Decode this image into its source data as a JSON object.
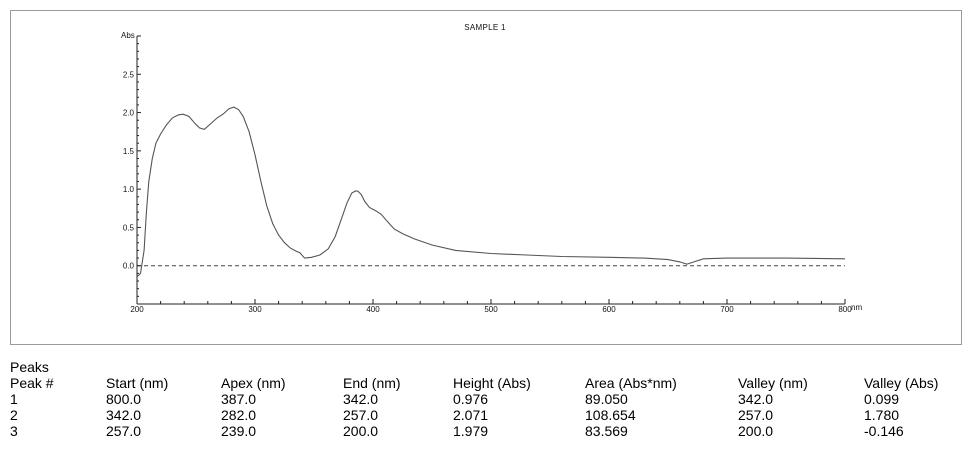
{
  "chart_data": {
    "type": "line",
    "title": "SAMPLE 1",
    "ylabel": "Abs",
    "xlabel": "nm",
    "xlim": [
      200,
      800
    ],
    "ylim": [
      -0.5,
      3.0
    ],
    "x_ticks": [
      200,
      300,
      400,
      500,
      600,
      700,
      800
    ],
    "x_tick_labels": [
      "200",
      "300",
      "400",
      "500",
      "600",
      "700",
      "800"
    ],
    "y_ticks": [
      0.0,
      0.5,
      1.0,
      1.5,
      2.0,
      2.5
    ],
    "y_tick_labels": [
      "0.0",
      "0.5",
      "1.0",
      "1.5",
      "2.0",
      "2.5"
    ],
    "baseline": 0.0,
    "series": [
      {
        "color": "#555555",
        "x": [
          200,
          203,
          206,
          208,
          210,
          213,
          216,
          220,
          225,
          230,
          235,
          239,
          244,
          249,
          253,
          257,
          262,
          268,
          273,
          278,
          282,
          286,
          290,
          295,
          300,
          305,
          310,
          315,
          320,
          325,
          330,
          335,
          338,
          342,
          348,
          355,
          362,
          368,
          373,
          378,
          382,
          385,
          387,
          390,
          393,
          397,
          402,
          407,
          412,
          418,
          425,
          435,
          450,
          470,
          500,
          530,
          560,
          600,
          630,
          650,
          660,
          666,
          672,
          680,
          700,
          750,
          800
        ],
        "y": [
          -0.146,
          -0.1,
          0.2,
          0.7,
          1.1,
          1.4,
          1.6,
          1.72,
          1.84,
          1.93,
          1.97,
          1.979,
          1.95,
          1.86,
          1.8,
          1.78,
          1.85,
          1.93,
          1.98,
          2.05,
          2.071,
          2.04,
          1.95,
          1.75,
          1.45,
          1.1,
          0.78,
          0.55,
          0.4,
          0.3,
          0.23,
          0.19,
          0.17,
          0.099,
          0.11,
          0.14,
          0.22,
          0.38,
          0.6,
          0.82,
          0.95,
          0.975,
          0.976,
          0.93,
          0.84,
          0.76,
          0.72,
          0.67,
          0.58,
          0.48,
          0.42,
          0.35,
          0.27,
          0.2,
          0.16,
          0.14,
          0.12,
          0.11,
          0.1,
          0.08,
          0.05,
          0.02,
          0.05,
          0.09,
          0.1,
          0.1,
          0.09
        ]
      }
    ]
  },
  "peaks": {
    "heading": "Peaks",
    "columns": [
      "Peak #",
      "Start (nm)",
      "Apex (nm)",
      "End (nm)",
      "Height (Abs)",
      "Area (Abs*nm)",
      "Valley (nm)",
      "Valley (Abs)"
    ],
    "rows": [
      [
        "1",
        "800.0",
        "387.0",
        "342.0",
        "0.976",
        "89.050",
        "342.0",
        "0.099"
      ],
      [
        "2",
        "342.0",
        "282.0",
        "257.0",
        "2.071",
        "108.654",
        "257.0",
        "1.780"
      ],
      [
        "3",
        "257.0",
        "239.0",
        "200.0",
        "1.979",
        "83.569",
        "200.0",
        "-0.146"
      ]
    ]
  }
}
